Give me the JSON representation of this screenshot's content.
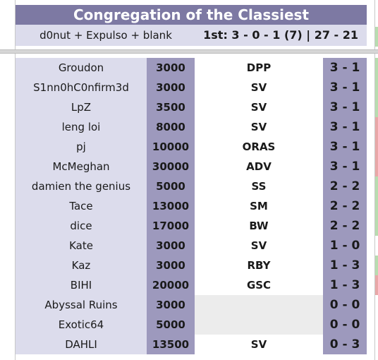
{
  "team": {
    "title": "Congregation of the Classiest",
    "members": "d0nut + Expulso + blank",
    "standing": "1st: 3 - 0 - 1 (7) | 27 - 21"
  },
  "players": [
    {
      "name": "Groudon",
      "points": "3000",
      "gen": "DPP",
      "record": "3 - 1",
      "edge": "#b8dcb0"
    },
    {
      "name": "S1nn0hC0nfirm3d",
      "points": "3000",
      "gen": "SV",
      "record": "3 - 1",
      "edge": "#b8dcb0"
    },
    {
      "name": "LpZ",
      "points": "3500",
      "gen": "SV",
      "record": "3 - 1",
      "edge": "#b8dcb0"
    },
    {
      "name": "leng loi",
      "points": "8000",
      "gen": "SV",
      "record": "3 - 1",
      "edge": "#e8a8a8"
    },
    {
      "name": "pj",
      "points": "10000",
      "gen": "ORAS",
      "record": "3 - 1",
      "edge": "#e8a8a8"
    },
    {
      "name": "McMeghan",
      "points": "30000",
      "gen": "ADV",
      "record": "3 - 1",
      "edge": "#e8a8a8"
    },
    {
      "name": "damien the genius",
      "points": "5000",
      "gen": "SS",
      "record": "2 - 2",
      "edge": "#b8dcb0"
    },
    {
      "name": "Tace",
      "points": "13000",
      "gen": "SM",
      "record": "2 - 2",
      "edge": "#b8dcb0"
    },
    {
      "name": "dice",
      "points": "17000",
      "gen": "BW",
      "record": "2 - 2",
      "edge": "#b8dcb0"
    },
    {
      "name": "Kate",
      "points": "3000",
      "gen": "SV",
      "record": "1 - 0",
      "edge": "#ffffff"
    },
    {
      "name": "Kaz",
      "points": "3000",
      "gen": "RBY",
      "record": "1 - 3",
      "edge": "#b8dcb0"
    },
    {
      "name": "BIHI",
      "points": "20000",
      "gen": "GSC",
      "record": "1 - 3",
      "edge": "#e8a8a8"
    },
    {
      "name": "Abyssal Ruins",
      "points": "3000",
      "gen": "",
      "record": "0 - 0",
      "edge": "#ffffff"
    },
    {
      "name": "Exotic64",
      "points": "5000",
      "gen": "",
      "record": "0 - 0",
      "edge": "#ffffff"
    },
    {
      "name": "DAHLI",
      "points": "13500",
      "gen": "SV",
      "record": "0 - 3",
      "edge": "#ffffff"
    }
  ]
}
